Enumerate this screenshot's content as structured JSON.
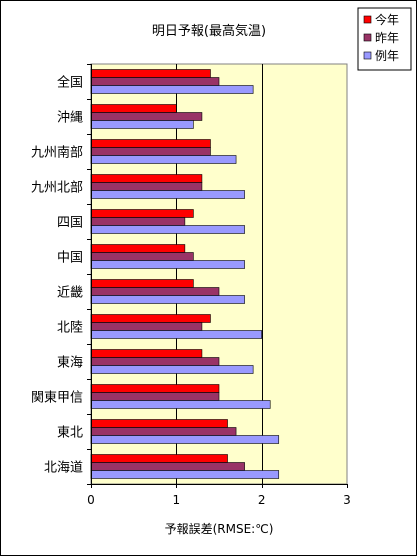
{
  "chart_data": {
    "type": "bar",
    "orientation": "horizontal",
    "title": "明日予報(最高気温)",
    "xlabel": "予報誤差(RMSE:℃)",
    "ylabel": "",
    "xlim": [
      0,
      3
    ],
    "xticks": [
      "0",
      "1",
      "2",
      "3"
    ],
    "grid": "vertical-major",
    "legend_position": "top-right",
    "plot_background": "#ffffcc",
    "categories": [
      "全国",
      "沖縄",
      "九州南部",
      "九州北部",
      "四国",
      "中国",
      "近畿",
      "北陸",
      "東海",
      "関東甲信",
      "東北",
      "北海道"
    ],
    "series": [
      {
        "name": "今年",
        "color": "#ff0000",
        "values": [
          1.4,
          1.0,
          1.4,
          1.3,
          1.2,
          1.1,
          1.2,
          1.4,
          1.3,
          1.5,
          1.6,
          1.6
        ]
      },
      {
        "name": "昨年",
        "color": "#993366",
        "values": [
          1.5,
          1.3,
          1.4,
          1.3,
          1.1,
          1.2,
          1.5,
          1.3,
          1.5,
          1.5,
          1.7,
          1.8
        ]
      },
      {
        "name": "例年",
        "color": "#9999ff",
        "values": [
          1.9,
          1.2,
          1.7,
          1.8,
          1.8,
          1.8,
          1.8,
          2.0,
          1.9,
          2.1,
          2.2,
          2.2
        ]
      }
    ]
  }
}
